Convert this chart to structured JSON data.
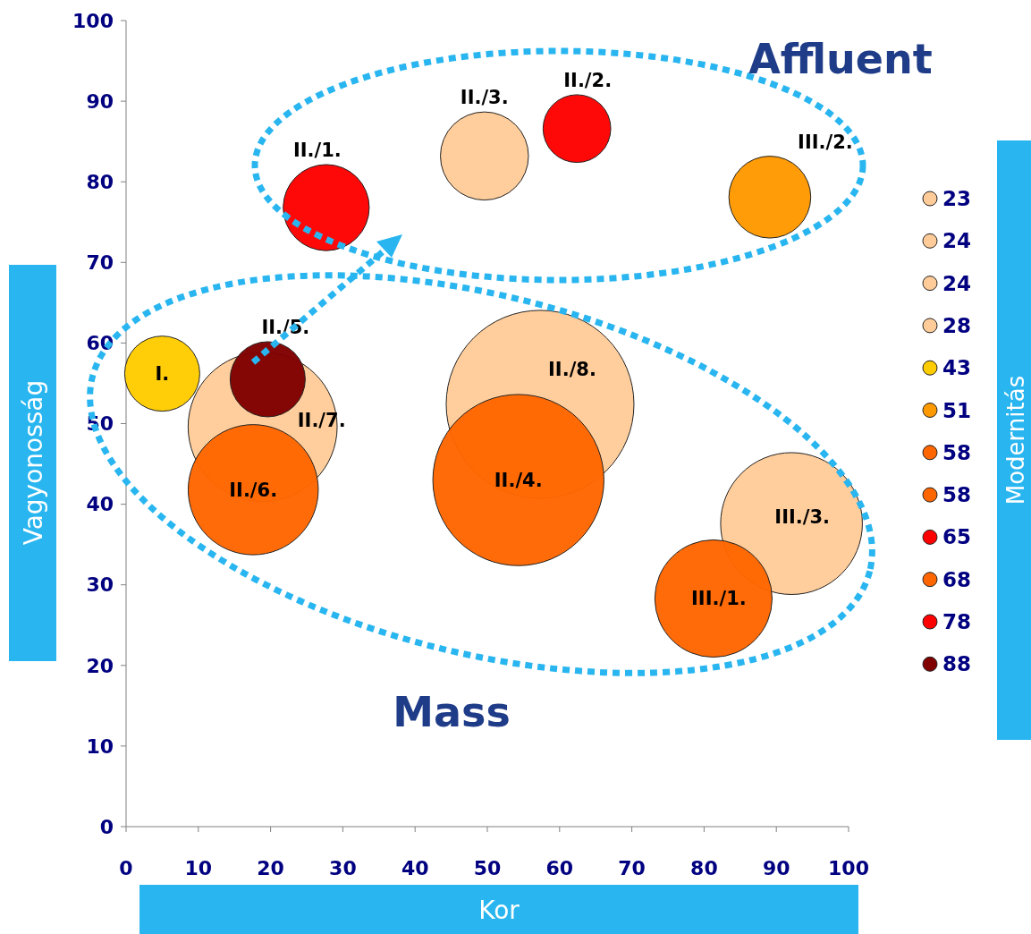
{
  "chart_data": {
    "type": "bubble",
    "xlabel": "Kor",
    "ylabel": "Vagyonosság",
    "legend_title": "Modernitás",
    "xlim": [
      0,
      100
    ],
    "ylim": [
      0,
      100
    ],
    "xticks": [
      0,
      10,
      20,
      30,
      40,
      50,
      60,
      70,
      80,
      90,
      100
    ],
    "yticks": [
      0,
      10,
      20,
      30,
      40,
      50,
      60,
      70,
      80,
      90,
      100
    ],
    "grid": false,
    "legend": "right",
    "series": [
      {
        "name": "23",
        "color": "#ffcc99",
        "x": [
          49.6
        ],
        "values": [
          83.2
        ],
        "sizes": [
          0.22
        ]
      },
      {
        "name": "24",
        "color": "#ffcc99",
        "x": [
          18.9
        ],
        "values": [
          49.6
        ],
        "sizes": [
          0.63
        ]
      },
      {
        "name": "24",
        "color": "#ffcc99",
        "x": [
          57.3
        ],
        "values": [
          52.4
        ],
        "sizes": [
          1
        ]
      },
      {
        "name": "28",
        "color": "#ffcc99",
        "x": [
          92.1
        ],
        "values": [
          37.6
        ],
        "sizes": [
          0.57
        ]
      },
      {
        "name": "43",
        "color": "#ffcc00",
        "x": [
          5
        ],
        "values": [
          56.2
        ],
        "sizes": [
          0.16
        ]
      },
      {
        "name": "51",
        "color": "#ff9900",
        "x": [
          89.1
        ],
        "values": [
          78.1
        ],
        "sizes": [
          0.19
        ]
      },
      {
        "name": "58",
        "color": "#ff6600",
        "x": [
          17.6
        ],
        "values": [
          41.8
        ],
        "sizes": [
          0.48
        ]
      },
      {
        "name": "58",
        "color": "#ff6600",
        "x": [
          81.3
        ],
        "values": [
          28.3
        ],
        "sizes": [
          0.39
        ]
      },
      {
        "name": "65",
        "color": "#ff0000",
        "x": [
          62.4
        ],
        "values": [
          86.6
        ],
        "sizes": [
          0.13
        ]
      },
      {
        "name": "68",
        "color": "#ff6600",
        "x": [
          54.3
        ],
        "values": [
          43
        ],
        "sizes": [
          0.83
        ]
      },
      {
        "name": "78",
        "color": "#ff0000",
        "x": [
          27.7
        ],
        "values": [
          76.8
        ],
        "sizes": [
          0.21
        ]
      },
      {
        "name": "88",
        "color": "#800000",
        "x": [
          19.6
        ],
        "values": [
          55.5
        ],
        "sizes": [
          0.16
        ]
      }
    ],
    "annotations": [
      {
        "text": "II./3.",
        "x": 49.6,
        "y": 83.2
      },
      {
        "text": "II./7.",
        "x": 18.9,
        "y": 49.6
      },
      {
        "text": "II./8.",
        "x": 57.3,
        "y": 52.4
      },
      {
        "text": "III./3.",
        "x": 92.1,
        "y": 37.6
      },
      {
        "text": "I.",
        "x": 5,
        "y": 56.2
      },
      {
        "text": "III./2.",
        "x": 89.1,
        "y": 78.1
      },
      {
        "text": "II./6.",
        "x": 17.6,
        "y": 41.8
      },
      {
        "text": "III./1.",
        "x": 81.3,
        "y": 28.3
      },
      {
        "text": "II./2.",
        "x": 62.4,
        "y": 86.6
      },
      {
        "text": "II./4.",
        "x": 54.3,
        "y": 43
      },
      {
        "text": "II./1.",
        "x": 27.7,
        "y": 76.8
      },
      {
        "text": "II./5.",
        "x": 19.6,
        "y": 55.5
      },
      "Affluent",
      "Mass"
    ]
  }
}
